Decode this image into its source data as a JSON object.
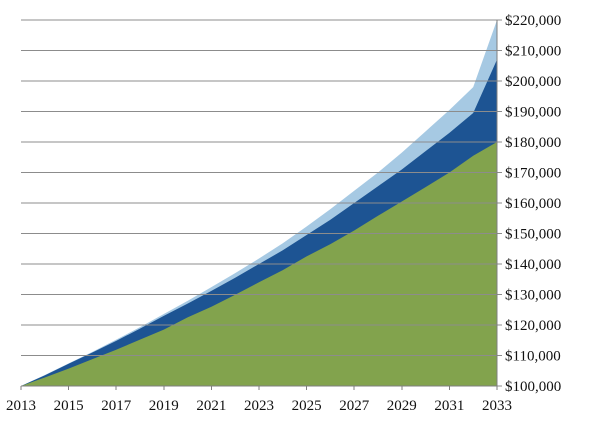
{
  "chart_data": {
    "type": "area",
    "stacked": true,
    "title": "",
    "xlabel": "",
    "ylabel": "",
    "x": [
      2013,
      2014,
      2015,
      2016,
      2017,
      2018,
      2019,
      2020,
      2021,
      2022,
      2023,
      2024,
      2025,
      2026,
      2027,
      2028,
      2029,
      2030,
      2031,
      2032,
      2033
    ],
    "x_ticks": [
      "2013",
      "2015",
      "2017",
      "2019",
      "2021",
      "2023",
      "2025",
      "2027",
      "2029",
      "2031",
      "2033"
    ],
    "y_ticks": [
      "$100,000",
      "$110,000",
      "$120,000",
      "$130,000",
      "$140,000",
      "$150,000",
      "$160,000",
      "$170,000",
      "$180,000",
      "$190,000",
      "$200,000",
      "$210,000",
      "$220,000"
    ],
    "ylim": [
      100000,
      220000
    ],
    "xlim": [
      2013,
      2033
    ],
    "y_axis_position": "right",
    "grid": "horizontal",
    "legend": "none",
    "series": [
      {
        "color": "#82a34d",
        "cumulative_top": [
          100000,
          102800,
          105700,
          108800,
          111900,
          115200,
          118500,
          122500,
          126000,
          129900,
          134000,
          138000,
          142500,
          146500,
          151000,
          155800,
          160500,
          165200,
          170000,
          175500,
          180000
        ]
      },
      {
        "color": "#1d5493",
        "cumulative_top": [
          100000,
          103500,
          107300,
          111000,
          114800,
          118800,
          123000,
          127000,
          131200,
          135500,
          140000,
          144500,
          149500,
          154500,
          160000,
          165500,
          171000,
          177000,
          183000,
          189500,
          207000
        ]
      },
      {
        "color": "#a6c9e3",
        "cumulative_top": [
          100000,
          103600,
          107400,
          111200,
          115200,
          119300,
          123600,
          127900,
          132400,
          137000,
          141800,
          146800,
          152300,
          158000,
          164000,
          170000,
          176500,
          183500,
          190500,
          198000,
          220000
        ]
      }
    ]
  }
}
